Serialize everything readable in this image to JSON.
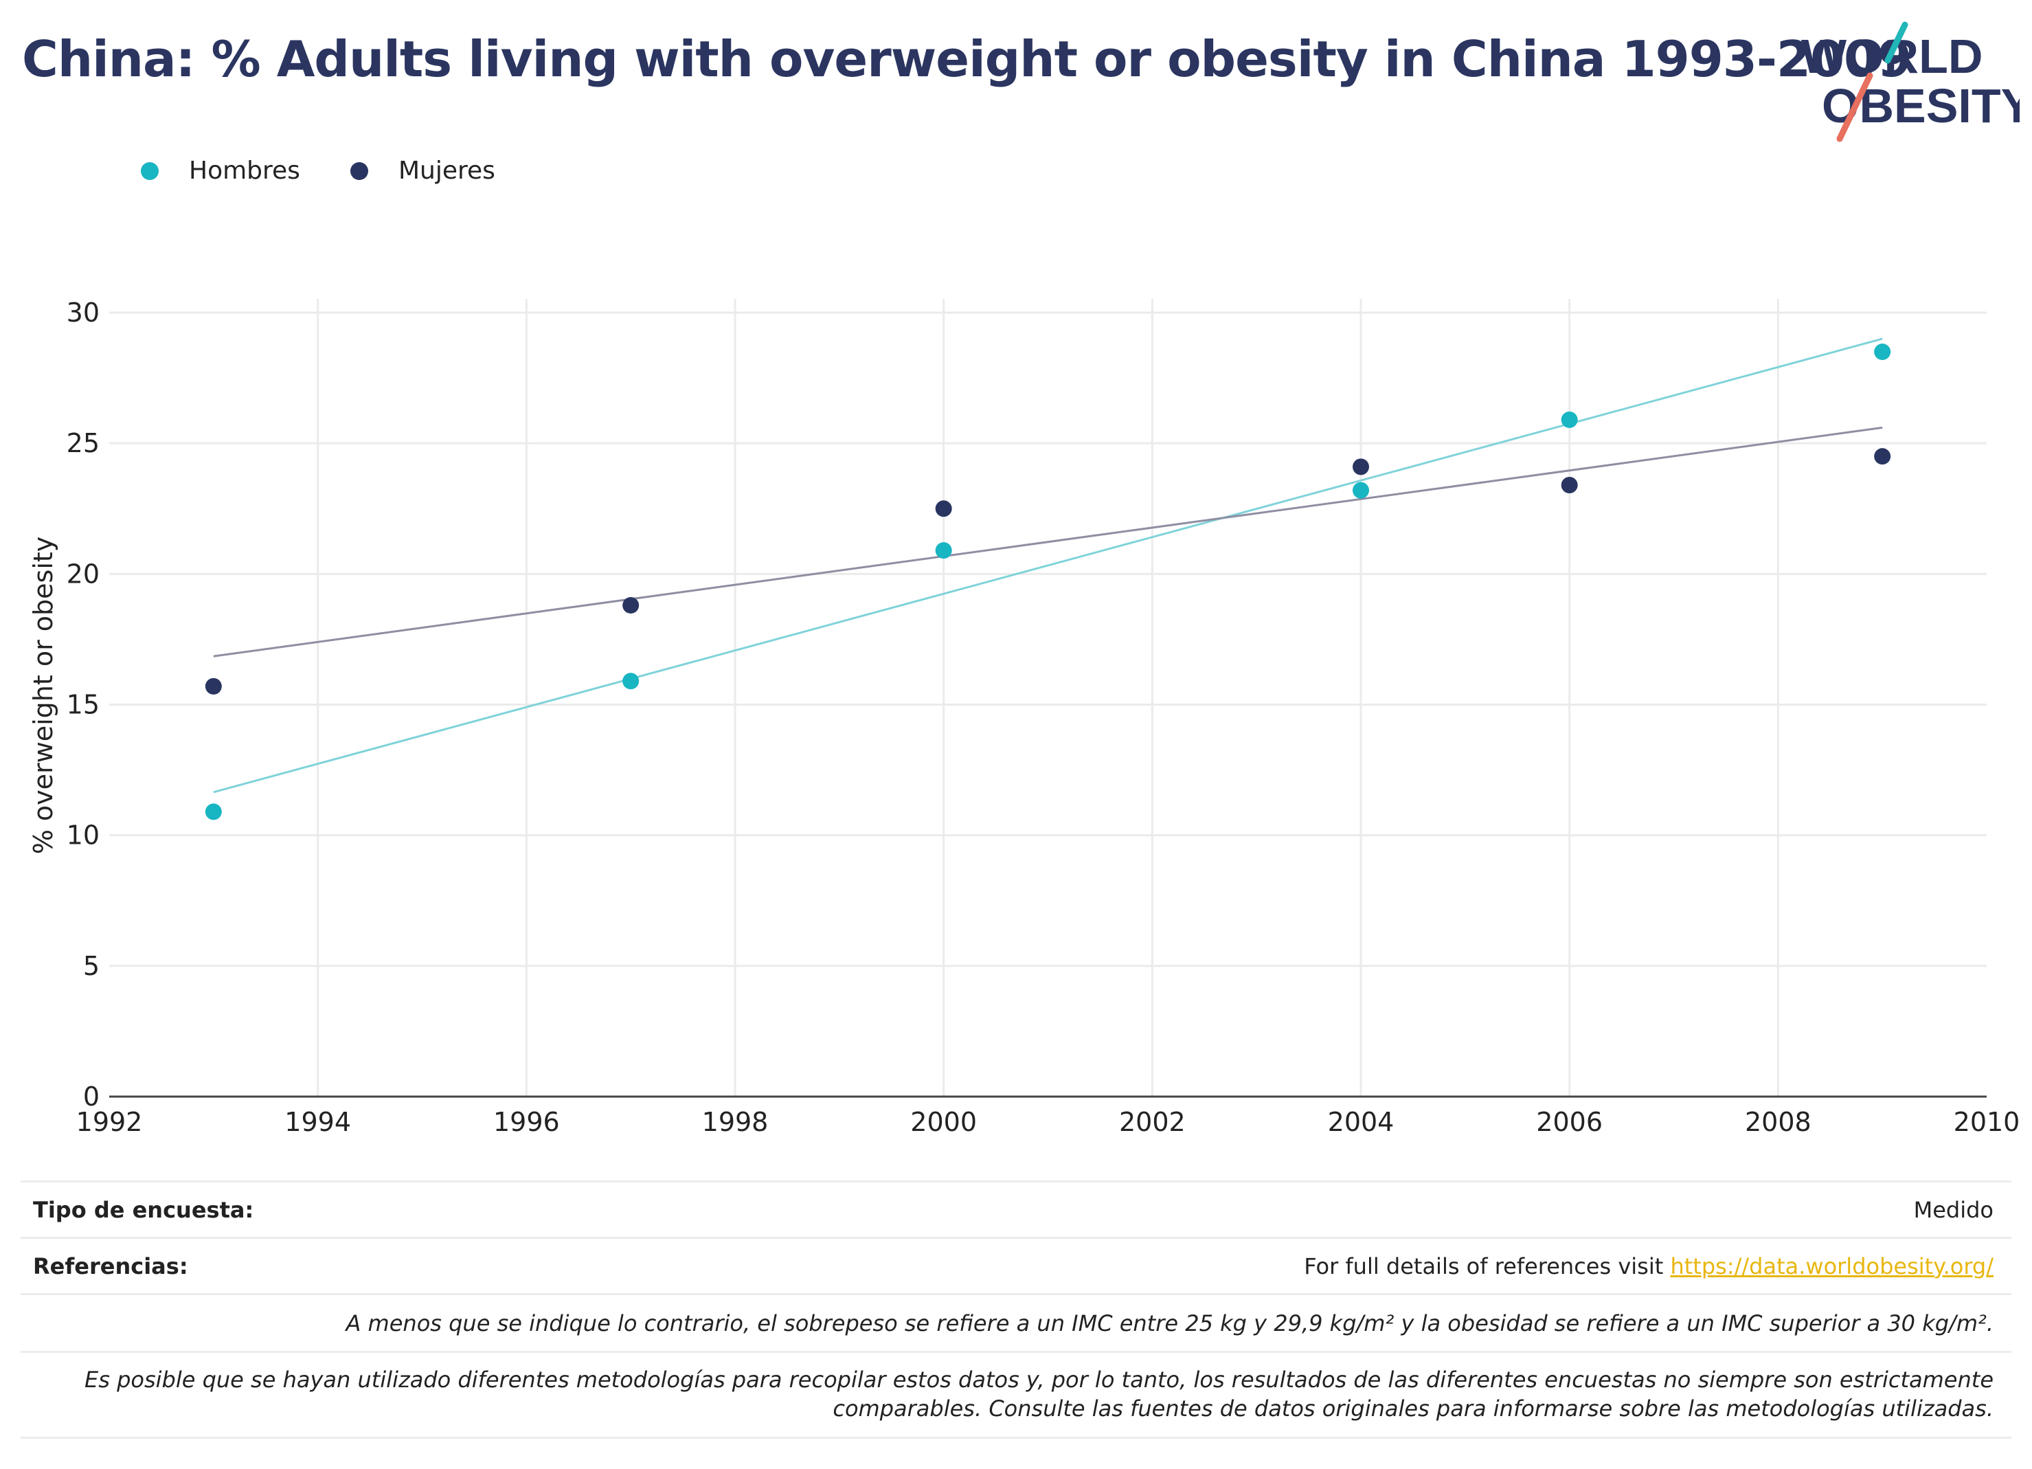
{
  "header": {
    "title": "China: % Adults living with overweight or obesity in China 1993-2009",
    "logo_line1": "WORLD",
    "logo_line2": "OBESITY"
  },
  "colors": {
    "title": "#2b3560",
    "hombres": "#18b5c2",
    "mujeres": "#293560",
    "hombres_trend": "#7fd3da",
    "mujeres_trend": "#8e8ea3",
    "grid": "#ebebeb",
    "axis": "#444444",
    "link": "#e8b60f",
    "logo_teal": "#21b6b8",
    "logo_coral": "#e8705e"
  },
  "legend": [
    {
      "label": "Hombres",
      "color": "#18b5c2"
    },
    {
      "label": "Mujeres",
      "color": "#293560"
    }
  ],
  "chart_data": {
    "type": "scatter",
    "title": "China: % Adults living with overweight or obesity in China 1993-2009",
    "xlabel": "",
    "ylabel": "% overweight or obesity",
    "xlim": [
      1992,
      2010
    ],
    "ylim": [
      0,
      30
    ],
    "xticks": [
      1992,
      1994,
      1996,
      1998,
      2000,
      2002,
      2004,
      2006,
      2008,
      2010
    ],
    "yticks": [
      0,
      5,
      10,
      15,
      20,
      25,
      30
    ],
    "grid": true,
    "legend_position": "top-left",
    "series": [
      {
        "name": "Hombres",
        "x": [
          1993,
          1997,
          2000,
          2004,
          2006,
          2009
        ],
        "y": [
          10.9,
          15.9,
          20.9,
          23.2,
          25.9,
          28.5
        ],
        "trend": {
          "x": [
            1993,
            2009
          ],
          "y": [
            11.65,
            29.0
          ]
        }
      },
      {
        "name": "Mujeres",
        "x": [
          1993,
          1997,
          2000,
          2004,
          2006,
          2009
        ],
        "y": [
          15.7,
          18.8,
          22.5,
          24.1,
          23.4,
          24.5
        ],
        "trend": {
          "x": [
            1993,
            2009
          ],
          "y": [
            16.85,
            25.6
          ]
        }
      }
    ]
  },
  "footer": {
    "survey_label": "Tipo de encuesta:",
    "survey_value": "Medido",
    "refs_label": "Referencias:",
    "refs_text": "For full details of references visit ",
    "refs_link": "https://data.worldobesity.org/",
    "note1": "A menos que se indique lo contrario, el sobrepeso se refiere a un IMC entre 25 kg y 29,9 kg/m² y la obesidad se refiere a un IMC superior a 30 kg/m².",
    "note2_line1": "Es posible que se hayan utilizado diferentes metodologías para recopilar estos datos y, por lo tanto, los resultados de las diferentes encuestas no siempre son estrictamente",
    "note2_line2": "comparables. Consulte las fuentes de datos originales para informarse sobre las metodologías utilizadas."
  }
}
